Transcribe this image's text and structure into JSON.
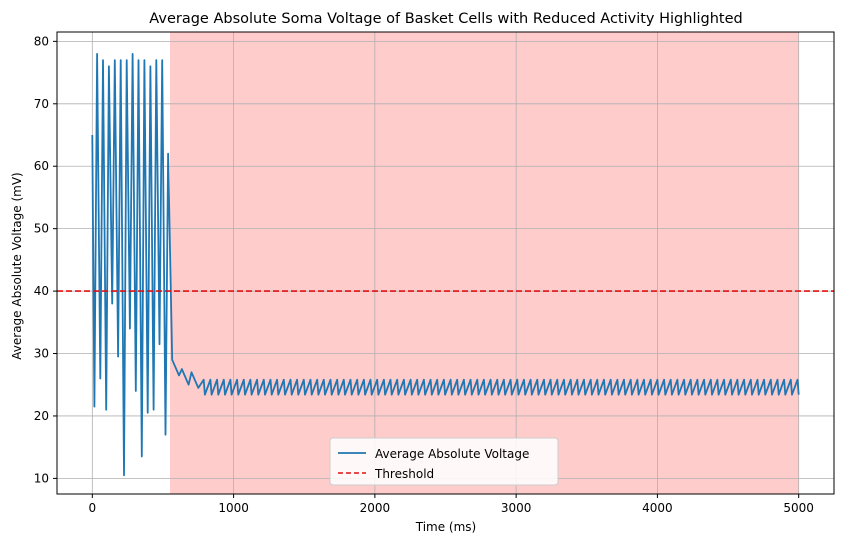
{
  "chart_data": {
    "type": "line",
    "title": "Average Absolute Soma Voltage of Basket Cells with Reduced Activity Highlighted",
    "xlabel": "Time (ms)",
    "ylabel": "Average Absolute Voltage (mV)",
    "xlim": [
      -250,
      5250
    ],
    "ylim": [
      7.5,
      81.5
    ],
    "xticks": [
      0,
      1000,
      2000,
      3000,
      4000,
      5000
    ],
    "yticks": [
      10,
      20,
      30,
      40,
      50,
      60,
      70,
      80
    ],
    "grid": true,
    "legend_position": "lower center",
    "highlight_region": {
      "x_start": 550,
      "x_end": 5000,
      "color": "#ffcccc"
    },
    "threshold": {
      "name": "Threshold",
      "value": 40,
      "color": "#dd1111",
      "style": "dashed"
    },
    "series": [
      {
        "name": "Average Absolute Voltage",
        "color": "#1f77b4",
        "burst": {
          "x_start": 0,
          "x_end": 545,
          "start_value": 65,
          "troughs": [
            21.5,
            26,
            21,
            38,
            29.5,
            10.5,
            34,
            24,
            13.5,
            20.5,
            21,
            31.5,
            17
          ],
          "peaks": [
            78,
            77,
            76,
            77,
            77,
            77,
            78,
            77,
            77,
            76,
            77,
            77,
            62
          ]
        },
        "decay": {
          "x_start": 545,
          "x_end": 750,
          "peak_values": [
            29,
            27.5,
            27
          ],
          "trough_values": [
            26.5,
            25,
            24.5
          ]
        },
        "tail": {
          "x_start": 750,
          "x_end": 5000,
          "cycles": 90,
          "peak": 25.8,
          "trough": 23.4
        }
      }
    ]
  }
}
